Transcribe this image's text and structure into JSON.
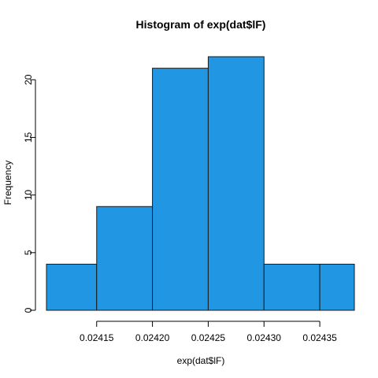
{
  "chart_data": {
    "type": "bar",
    "title": "Histogram of exp(dat$lF)",
    "xlabel": "exp(dat$lF)",
    "ylabel": "Frequency",
    "bins": [
      {
        "x0": 0.024105,
        "x1": 0.02415,
        "count": 4
      },
      {
        "x0": 0.02415,
        "x1": 0.0242,
        "count": 9
      },
      {
        "x0": 0.0242,
        "x1": 0.02425,
        "count": 21
      },
      {
        "x0": 0.02425,
        "x1": 0.0243,
        "count": 22
      },
      {
        "x0": 0.0243,
        "x1": 0.02435,
        "count": 4
      },
      {
        "x0": 0.02435,
        "x1": 0.024381,
        "count": 4
      }
    ],
    "xlim": [
      0.024105,
      0.024381
    ],
    "ylim": [
      0,
      22
    ],
    "x_ticks": [
      {
        "value": 0.02415,
        "label": "0.02415"
      },
      {
        "value": 0.0242,
        "label": "0.02420"
      },
      {
        "value": 0.02425,
        "label": "0.02425"
      },
      {
        "value": 0.0243,
        "label": "0.02430"
      },
      {
        "value": 0.02435,
        "label": "0.02435"
      }
    ],
    "y_ticks": [
      {
        "value": 0,
        "label": "0"
      },
      {
        "value": 5,
        "label": "5"
      },
      {
        "value": 10,
        "label": "10"
      },
      {
        "value": 15,
        "label": "15"
      },
      {
        "value": 20,
        "label": "20"
      }
    ],
    "bar_color": "#2196E3",
    "grid": false
  }
}
